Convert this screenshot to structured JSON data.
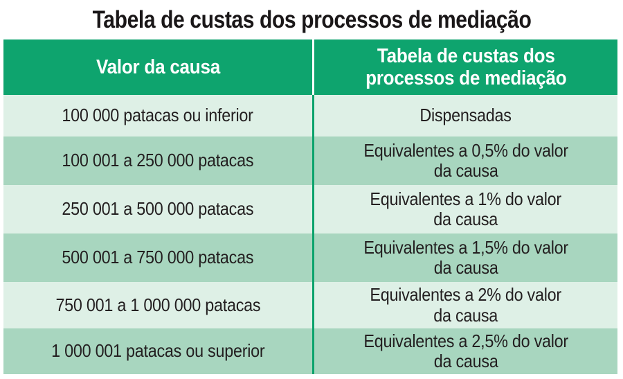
{
  "title": "Tabela de custas dos processos de mediação",
  "table": {
    "headers": [
      "Valor da causa",
      "Tabela de custas dos\nprocessos de mediação"
    ],
    "rows": [
      [
        "100 000 patacas ou inferior",
        "Dispensadas"
      ],
      [
        "100 001 a 250 000 patacas",
        "Equivalentes a 0,5% do valor\nda causa"
      ],
      [
        "250 001 a 500 000 patacas",
        "Equivalentes a 1% do valor\nda causa"
      ],
      [
        "500 001 a 750 000 patacas",
        "Equivalentes a 1,5% do valor\nda causa"
      ],
      [
        "750 001 a 1 000 000 patacas",
        "Equivalentes a 2% do valor\nda causa"
      ],
      [
        "1 000 001 patacas ou superior",
        "Equivalentes a 2,5% do valor\nda causa"
      ]
    ],
    "colors": {
      "header_bg": "#0ea46e",
      "row_light": "#def0e6",
      "row_dark": "#a8d6bf",
      "divider": "#0ba36c",
      "header_text": "#ffffff",
      "body_text": "#231f20"
    }
  },
  "chart_data": {
    "type": "table",
    "title": "Tabela de custas dos processos de mediação",
    "columns": [
      "Valor da causa",
      "Tabela de custas dos processos de mediação"
    ],
    "rows": [
      [
        "100 000 patacas ou inferior",
        "Dispensadas"
      ],
      [
        "100 001 a 250 000 patacas",
        "Equivalentes a 0,5% do valor da causa"
      ],
      [
        "250 001 a 500 000 patacas",
        "Equivalentes a 1% do valor da causa"
      ],
      [
        "500 001 a 750 000 patacas",
        "Equivalentes a 1,5% do valor da causa"
      ],
      [
        "750 001 a 1 000 000 patacas",
        "Equivalentes a 2% do valor da causa"
      ],
      [
        "1 000 001 patacas ou superior",
        "Equivalentes a 2,5% do valor da causa"
      ]
    ]
  }
}
